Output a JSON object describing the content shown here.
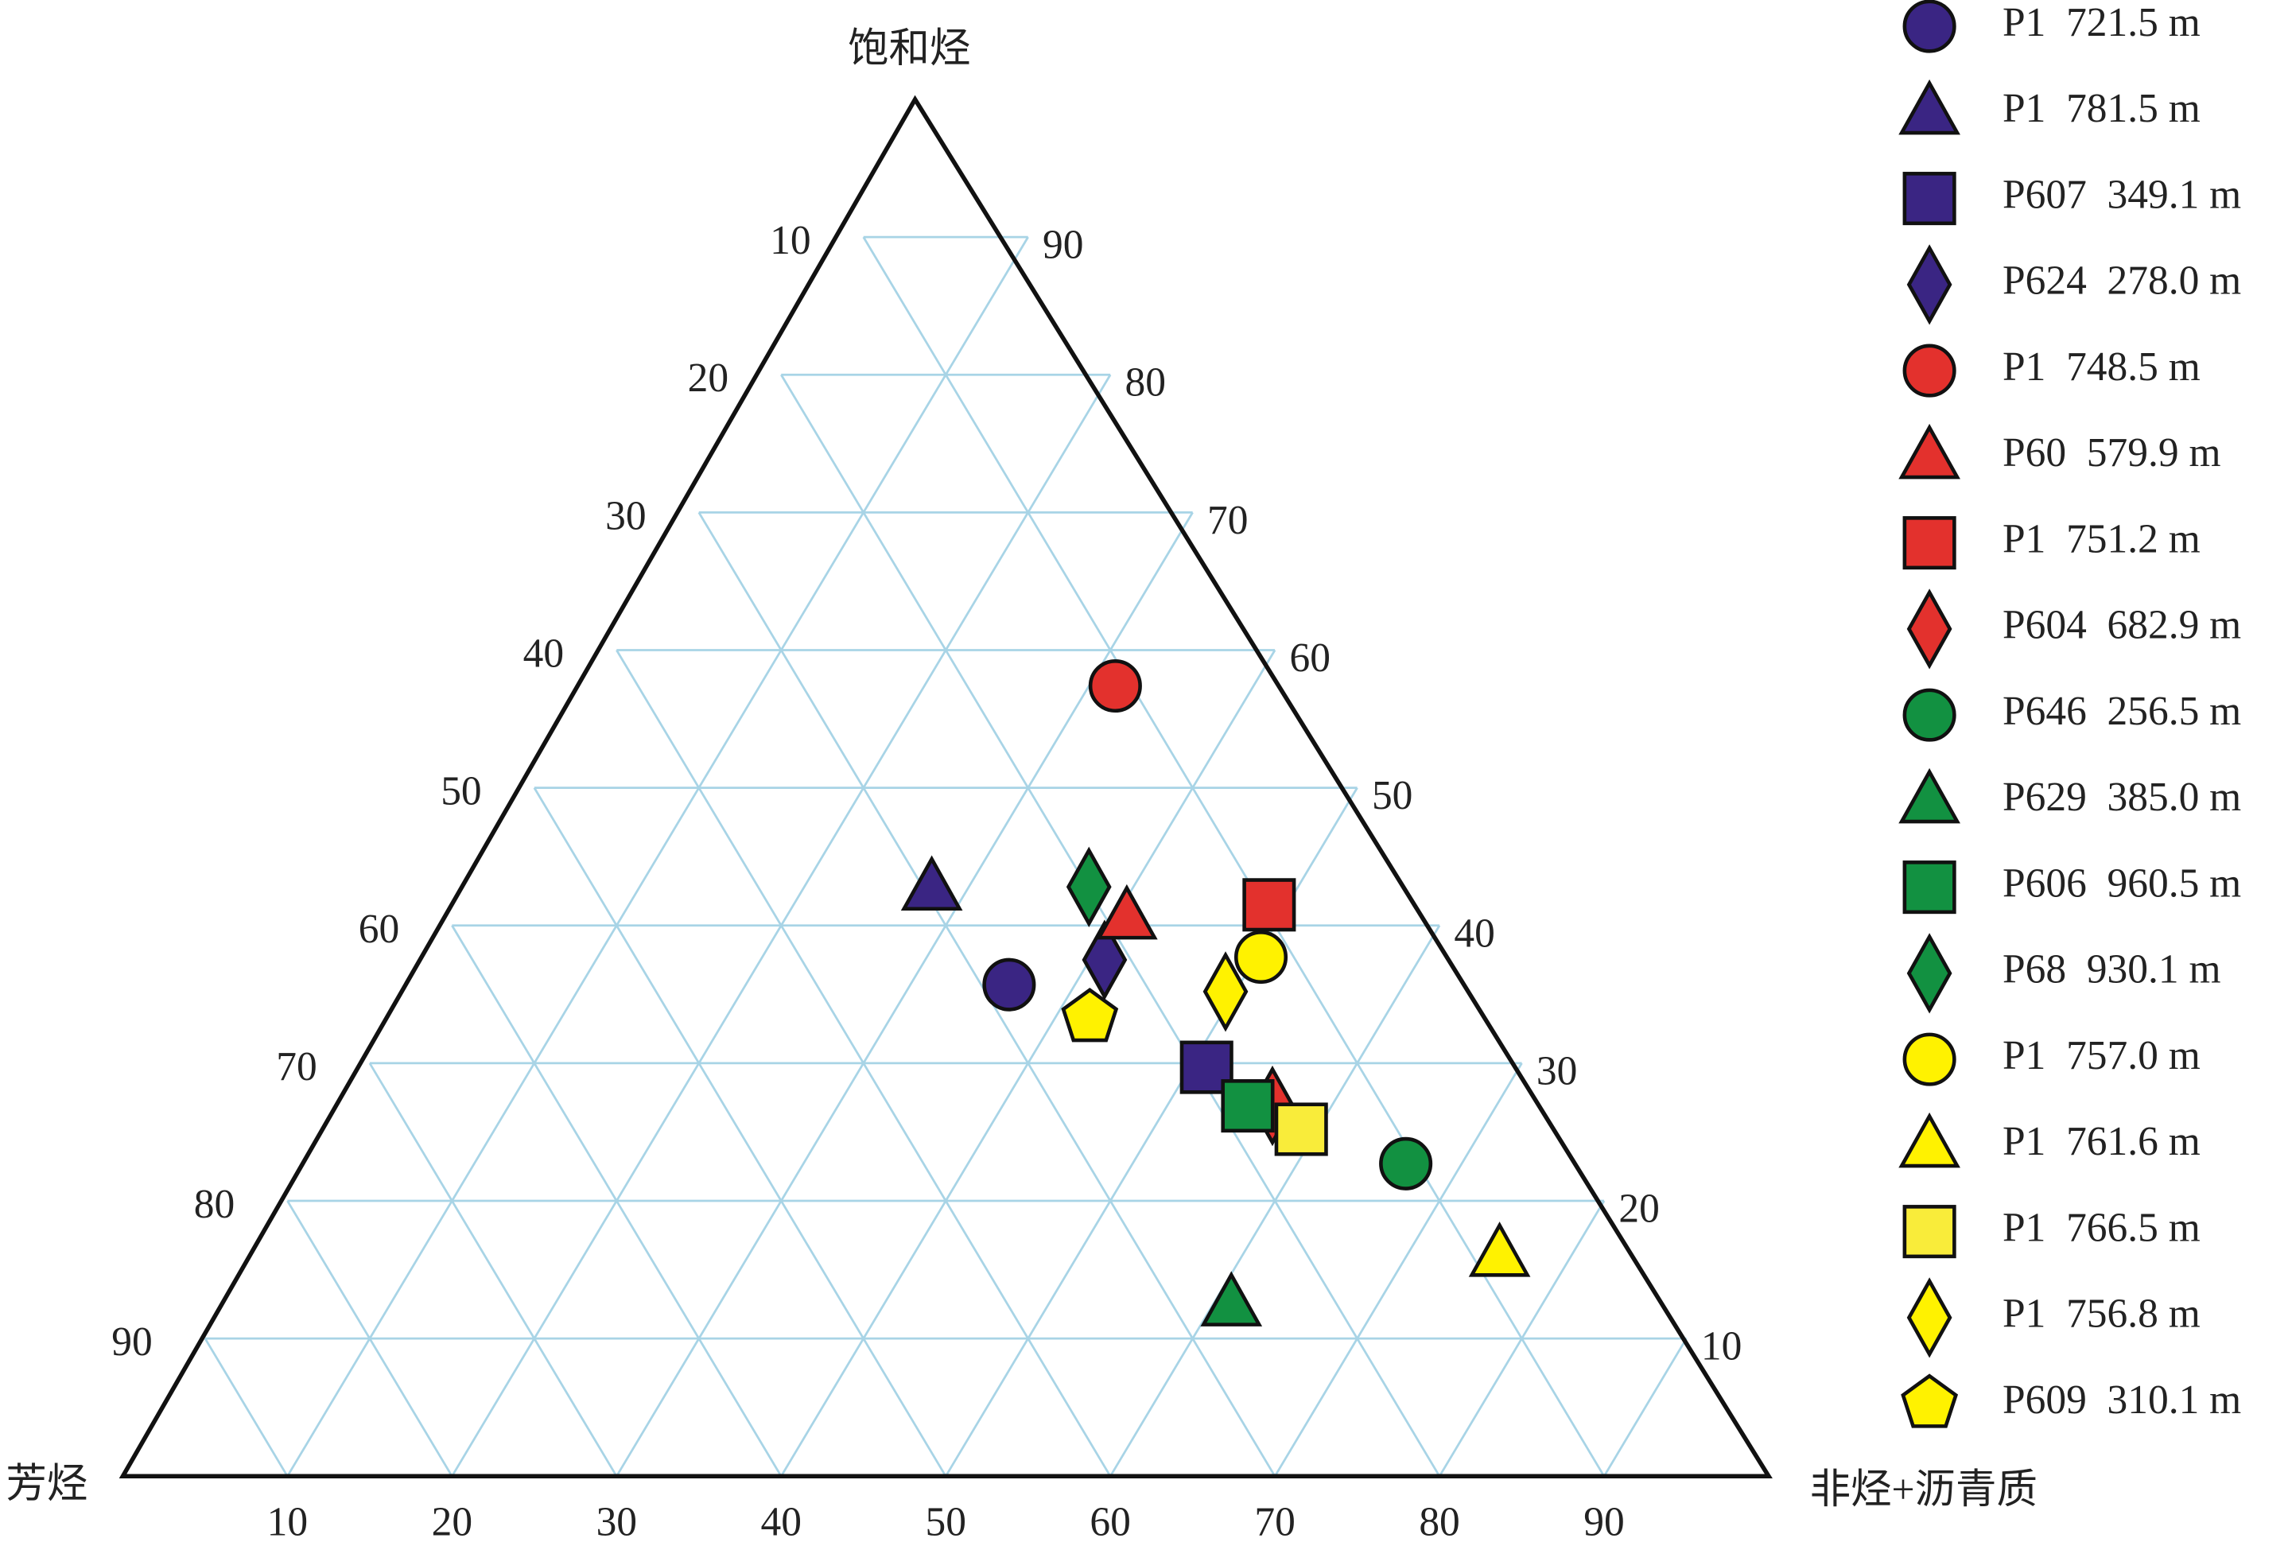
{
  "chart_data": {
    "type": "ternary",
    "top_label": "饱和烃",
    "left_label": "芳烃",
    "right_label": "非烃+沥青质",
    "component_order": [
      "饱和烃",
      "芳烃",
      "非烃+沥青质"
    ],
    "saturates_ticks": [
      10,
      20,
      30,
      40,
      50,
      60,
      70,
      80,
      90
    ],
    "aromatics_ticks": [
      10,
      20,
      30,
      40,
      50,
      60,
      70,
      80,
      90
    ],
    "resins_ticks": [
      10,
      20,
      30,
      40,
      50,
      60,
      70,
      80,
      90
    ],
    "grid": true,
    "legend": "right",
    "series": [
      {
        "name": "P1  721.5 m",
        "color": "#3a2583",
        "marker": "circle",
        "values": [
          35.7,
          28.3,
          36.0
        ]
      },
      {
        "name": "P1  781.5 m",
        "color": "#3a2583",
        "marker": "triangle",
        "values": [
          42.7,
          29.5,
          27.8
        ]
      },
      {
        "name": "P607  349.1 m",
        "color": "#3a2583",
        "marker": "square",
        "values": [
          29.7,
          19.3,
          51.0
        ]
      },
      {
        "name": "P624  278.0 m",
        "color": "#3a2583",
        "marker": "diamond",
        "values": [
          37.5,
          21.6,
          40.9
        ]
      },
      {
        "name": "P1  748.5 m",
        "color": "#e3312d",
        "marker": "circle",
        "values": [
          57.4,
          11.0,
          31.6
        ]
      },
      {
        "name": "P60  579.9 m",
        "color": "#e3312d",
        "marker": "triangle",
        "values": [
          40.6,
          18.7,
          40.7
        ]
      },
      {
        "name": "P1  751.2 m",
        "color": "#e3312d",
        "marker": "square",
        "values": [
          41.5,
          9.6,
          48.9
        ]
      },
      {
        "name": "P604  682.9 m",
        "color": "#e3312d",
        "marker": "diamond",
        "values": [
          26.9,
          16.7,
          56.4
        ]
      },
      {
        "name": "P646  256.5 m",
        "color": "#129141",
        "marker": "circle",
        "values": [
          22.7,
          10.7,
          66.6
        ]
      },
      {
        "name": "P629  385.0 m",
        "color": "#129141",
        "marker": "triangle",
        "values": [
          12.5,
          26.4,
          61.1
        ]
      },
      {
        "name": "P606  960.5 m",
        "color": "#129141",
        "marker": "square",
        "values": [
          26.9,
          18.2,
          54.9
        ]
      },
      {
        "name": "P68  930.1 m",
        "color": "#129141",
        "marker": "diamond",
        "values": [
          42.8,
          19.9,
          37.3
        ]
      },
      {
        "name": "P1  757.0 m",
        "color": "#fff200",
        "marker": "circle",
        "values": [
          37.7,
          12.0,
          50.3
        ]
      },
      {
        "name": "P1  761.6 m",
        "color": "#fff200",
        "marker": "triangle",
        "values": [
          16.1,
          8.3,
          75.6
        ]
      },
      {
        "name": "P1  766.5 m",
        "color": "#f9ec3a",
        "marker": "square",
        "values": [
          25.2,
          15.8,
          59.0
        ]
      },
      {
        "name": "P1  756.8 m",
        "color": "#fff200",
        "marker": "diamond",
        "values": [
          35.2,
          15.4,
          49.4
        ]
      },
      {
        "name": "P609  310.1 m",
        "color": "#fff200",
        "marker": "pentagon",
        "values": [
          33.3,
          24.6,
          42.1
        ]
      }
    ]
  }
}
